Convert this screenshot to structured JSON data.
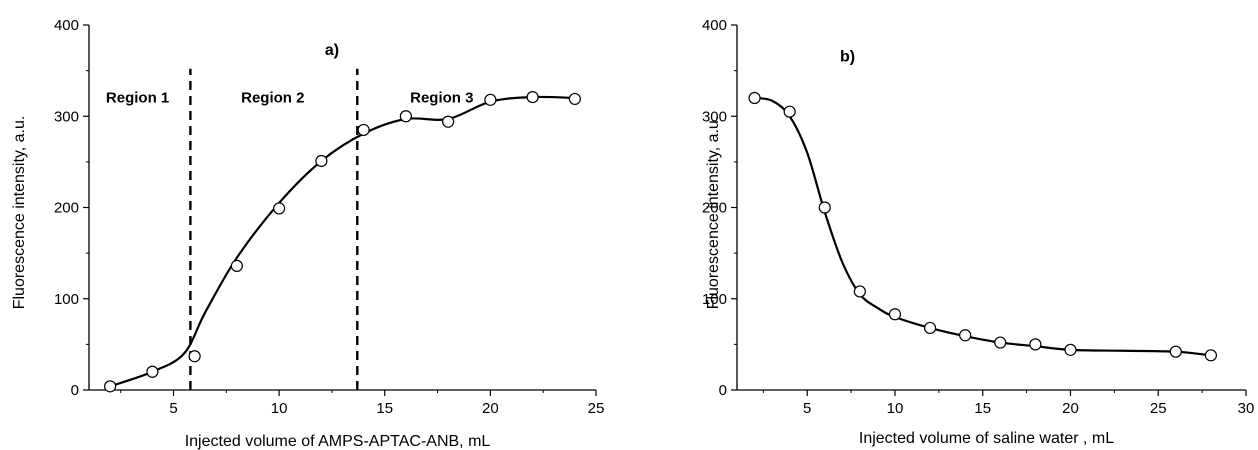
{
  "chart_data": [
    {
      "type": "scatter",
      "title": "a)",
      "xlabel": "Injected volume of AMPS-APTAC-ANB, mL",
      "ylabel": "Fluorescence intensity, a.u.",
      "xlim": [
        1,
        25
      ],
      "ylim": [
        0,
        400
      ],
      "xticks": [
        5,
        10,
        15,
        20,
        25
      ],
      "yticks": [
        0,
        100,
        200,
        300,
        400
      ],
      "x_tick_labels": [
        "5",
        "10",
        "15",
        "20",
        "25"
      ],
      "y_tick_labels": [
        "0",
        "100",
        "200",
        "300",
        "400"
      ],
      "grid": false,
      "legend": "none",
      "series": [
        {
          "x": [
            2,
            4,
            6,
            8,
            10,
            12,
            14,
            16,
            18,
            20,
            22,
            24
          ],
          "y": [
            4,
            20,
            37,
            136,
            199,
            251,
            285,
            300,
            294,
            318,
            321,
            319
          ]
        }
      ],
      "fit_curve": {
        "x": [
          2,
          4,
          5.5,
          6.5,
          8,
          10,
          12,
          14,
          16,
          18,
          20,
          22,
          24
        ],
        "y": [
          4,
          20,
          40,
          85,
          145,
          205,
          251,
          281,
          297,
          297,
          316,
          321,
          320
        ]
      },
      "vertical_dashed_lines": [
        5.8,
        13.7
      ],
      "region_labels": [
        {
          "text": "Region 1",
          "x": 3.3,
          "y": 315
        },
        {
          "text": "Region 2",
          "x": 9.7,
          "y": 315
        },
        {
          "text": "Region 3",
          "x": 17.7,
          "y": 315
        }
      ],
      "panel_label_pos": {
        "x": 12.5,
        "y": 367
      }
    },
    {
      "type": "scatter",
      "title": "b)",
      "xlabel": "Injected volume of saline water , mL",
      "ylabel": "Fluorescence intensity, a.u.",
      "xlim": [
        1,
        30
      ],
      "ylim": [
        0,
        400
      ],
      "xticks": [
        5,
        10,
        15,
        20,
        25,
        30
      ],
      "yticks": [
        0,
        100,
        200,
        300,
        400
      ],
      "x_tick_labels": [
        "5",
        "10",
        "15",
        "20",
        "25",
        "30"
      ],
      "y_tick_labels": [
        "0",
        "100",
        "200",
        "300",
        "400"
      ],
      "grid": false,
      "legend": "none",
      "series": [
        {
          "x": [
            2,
            4,
            6,
            8,
            10,
            12,
            14,
            16,
            18,
            20,
            26,
            28
          ],
          "y": [
            320,
            305,
            200,
            108,
            83,
            68,
            60,
            52,
            50,
            44,
            42,
            38
          ]
        }
      ],
      "fit_curve": {
        "x": [
          2,
          3,
          4,
          5,
          6,
          7,
          8,
          9,
          10,
          12,
          14,
          16,
          18,
          20,
          23,
          26,
          28
        ],
        "y": [
          320,
          317,
          300,
          260,
          195,
          140,
          105,
          90,
          80,
          68,
          59,
          52,
          48,
          44,
          43,
          42,
          38
        ]
      },
      "vertical_dashed_lines": [],
      "region_labels": [],
      "panel_label_pos": {
        "x": 7.3,
        "y": 360
      }
    }
  ]
}
